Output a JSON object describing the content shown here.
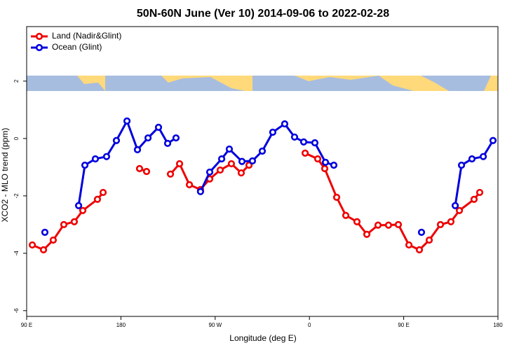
{
  "chart_data": {
    "type": "line",
    "title": "50N-60N June (Ver 10)   2014-09-06 to 2022-02-28",
    "x_label": "Longitude (deg E)",
    "y_label": "XCO2 - MLO trend (ppm)",
    "xlim": [
      90,
      540
    ],
    "xticks": [
      {
        "value": 90,
        "label": "90 E"
      },
      180,
      {
        "value": 270,
        "label": "90 W"
      },
      {
        "value": 360,
        "label": "0"
      },
      {
        "value": 450,
        "label": "90 E"
      },
      {
        "value": 540,
        "label": "180"
      }
    ],
    "ylim": [
      -6.2,
      3.9
    ],
    "yticks": [
      -6,
      -4,
      -2,
      0,
      2
    ],
    "legend": "top-left",
    "series": [
      {
        "name": "Land (Nadir&Glint)",
        "color": "#ee0000",
        "x": [
          95.4,
          106.1,
          115.4,
          125.5,
          135.5,
          143.6,
          157.6,
          163,
          null,
          197.8,
          204.5,
          null,
          227.3,
          236,
          245.4,
          256,
          264.8,
          274.8,
          285.5,
          294.9,
          302.3,
          null,
          355.9,
          367.9,
          374.6,
          386,
          394.7,
          405.4,
          414.8,
          425.5,
          435.5,
          444.9,
          455,
          465,
          474.4,
          485.1,
          495.1,
          503.2,
          517.2,
          522.6
        ],
        "values": [
          -3.71,
          -3.88,
          -3.54,
          -3.0,
          -2.9,
          -2.51,
          -2.12,
          -1.88,
          null,
          -1.05,
          -1.15,
          null,
          -1.24,
          -0.88,
          -1.61,
          -1.78,
          -1.41,
          -1.1,
          -0.88,
          -1.2,
          -0.93,
          null,
          -0.51,
          -0.71,
          -1.05,
          -2.05,
          -2.68,
          -2.9,
          -3.34,
          -3.02,
          -3.02,
          -3.0,
          -3.71,
          -3.88,
          -3.54,
          -3.0,
          -2.9,
          -2.51,
          -2.12,
          -1.88
        ]
      },
      {
        "name": "Ocean (Glint)",
        "color": "#0000dd",
        "x": [
          107.4,
          null,
          139.6,
          145.6,
          155.6,
          166.3,
          175.7,
          185.8,
          195.8,
          205.9,
          215.9,
          224.6,
          232.6,
          null,
          256,
          264.8,
          276.2,
          283.5,
          295.6,
          305.6,
          315,
          325,
          336.4,
          345.8,
          354.5,
          365.2,
          375.3,
          383.3,
          null,
          467,
          null,
          499.2,
          505.2,
          515.2,
          526,
          535.3
        ],
        "values": [
          -3.27,
          null,
          -2.34,
          -0.93,
          -0.71,
          -0.63,
          -0.07,
          0.61,
          -0.39,
          0.02,
          0.39,
          -0.17,
          0.02,
          null,
          -1.85,
          -1.17,
          -0.71,
          -0.37,
          -0.8,
          -0.78,
          -0.44,
          0.22,
          0.51,
          0.05,
          -0.12,
          -0.15,
          -0.83,
          -0.93,
          null,
          -3.27,
          null,
          -2.34,
          -0.93,
          -0.71,
          -0.63,
          -0.07
        ]
      }
    ]
  }
}
